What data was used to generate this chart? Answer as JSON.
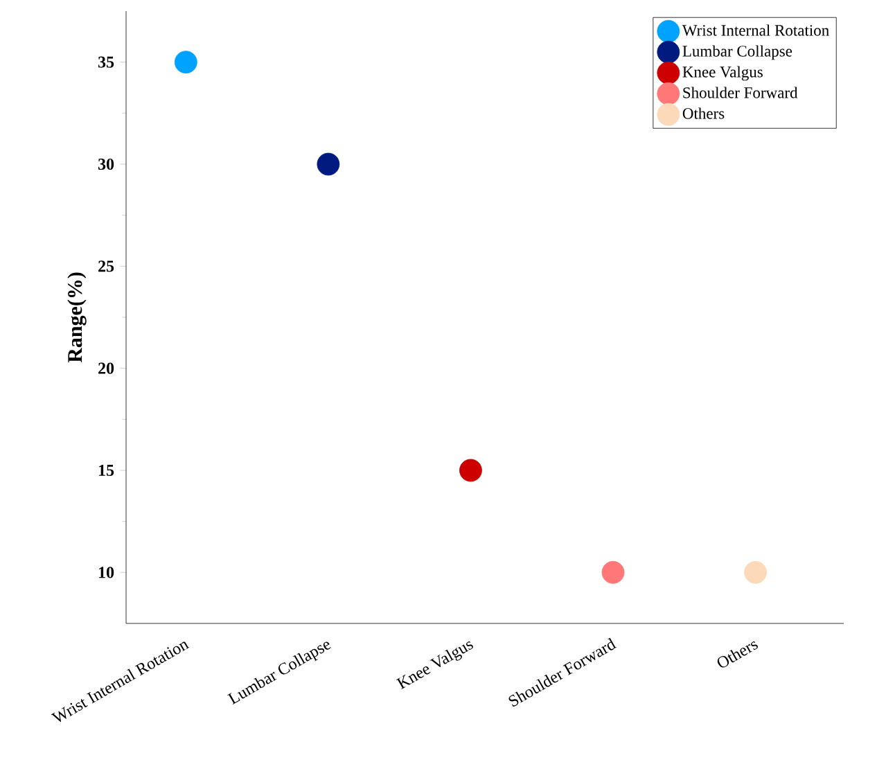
{
  "chart_data": {
    "type": "scatter",
    "ylabel": "Range(%)",
    "categories": [
      "Wrist Internal Rotation",
      "Lumbar Collapse",
      "Knee Valgus",
      "Shoulder Forward",
      "Others"
    ],
    "ylim": [
      7.5,
      37.5
    ],
    "yticks": [
      10,
      15,
      20,
      25,
      30,
      35
    ],
    "legend": "top right",
    "series": [
      {
        "name": "Wrist Internal Rotation",
        "color": "#00a2ff",
        "values": [
          35,
          null,
          null,
          null,
          null
        ]
      },
      {
        "name": "Lumbar Collapse",
        "color": "#001a80",
        "values": [
          null,
          30,
          null,
          null,
          null
        ]
      },
      {
        "name": "Knee Valgus",
        "color": "#cc0000",
        "values": [
          null,
          null,
          15,
          null,
          null
        ]
      },
      {
        "name": "Shoulder Forward",
        "color": "#ff7777",
        "values": [
          null,
          null,
          null,
          10,
          null
        ]
      },
      {
        "name": "Others",
        "color": "#fcd9b8",
        "values": [
          null,
          null,
          null,
          null,
          10
        ]
      }
    ]
  }
}
